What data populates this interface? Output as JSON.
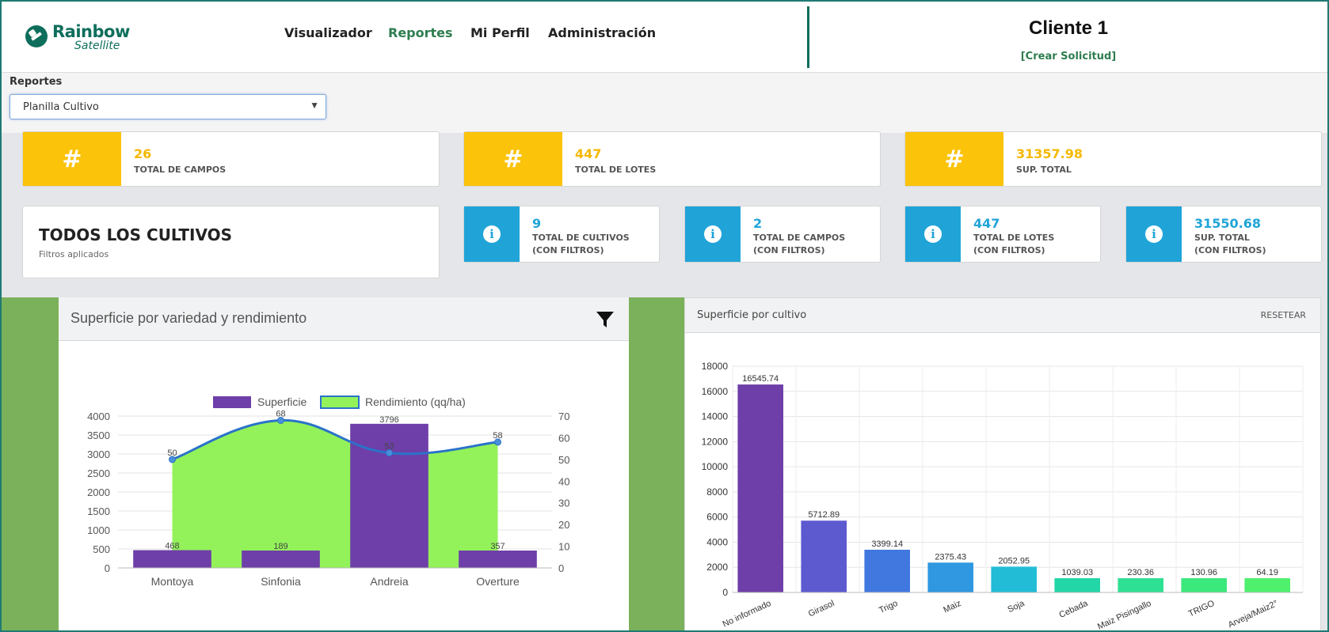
{
  "header": {
    "logo_name": "Rainbow",
    "logo_sub": "Satellite",
    "nav": [
      "Visualizador",
      "Reportes",
      "Mi Perfil",
      "Administración"
    ],
    "active_nav": "Reportes",
    "client": "Cliente 1",
    "create_request": "[Crear Solicitud]"
  },
  "reports": {
    "label": "Reportes",
    "selected": "Planilla Cultivo"
  },
  "summary": [
    {
      "icon": "#",
      "value": "26",
      "label": "TOTAL DE CAMPOS"
    },
    {
      "icon": "#",
      "value": "447",
      "label": "TOTAL DE LOTES"
    },
    {
      "icon": "#",
      "value": "31357.98",
      "label": "SUP. TOTAL"
    }
  ],
  "filters": {
    "title": "TODOS LOS CULTIVOS",
    "subtitle": "Filtros aplicados"
  },
  "filtered": [
    {
      "value": "9",
      "line1": "TOTAL DE CULTIVOS",
      "line2": "(CON FILTROS)"
    },
    {
      "value": "2",
      "line1": "TOTAL DE CAMPOS",
      "line2": "(CON FILTROS)"
    },
    {
      "value": "447",
      "line1": "TOTAL DE LOTES",
      "line2": "(CON FILTROS)"
    },
    {
      "value": "31550.68",
      "line1": "SUP. TOTAL",
      "line2": "(CON FILTROS)"
    }
  ],
  "colors": {
    "brand": "#0e6e5c",
    "yellow": "#fbc30a",
    "blue": "#20a4d8",
    "side_green": "#7bb15a"
  },
  "chart_data": [
    {
      "type": "bar+area",
      "title": "Superficie por variedad y rendimiento",
      "categories": [
        "Montoya",
        "Sinfonia",
        "Andreia",
        "Overture"
      ],
      "series": [
        {
          "name": "Superficie",
          "type": "bar",
          "axis": "left",
          "color": "#6e3fa8",
          "values": [
            468,
            189,
            3796,
            357
          ]
        },
        {
          "name": "Rendimiento (qq/ha)",
          "type": "area",
          "axis": "right",
          "color": "#93f25a",
          "values": [
            50,
            68,
            53,
            58
          ]
        }
      ],
      "y_left": {
        "min": 0,
        "max": 4000,
        "ticks": [
          0,
          500,
          1000,
          1500,
          2000,
          2500,
          3000,
          3500,
          4000
        ]
      },
      "y_right": {
        "min": 0,
        "max": 70,
        "ticks": [
          0,
          10,
          20,
          30,
          40,
          50,
          60,
          70
        ]
      },
      "legend": "top"
    },
    {
      "type": "bar",
      "title": "Superficie por cultivo",
      "action": "RESETEAR",
      "categories": [
        "No informado",
        "Girasol",
        "Trigo",
        "Maiz",
        "Soja",
        "Cebada",
        "Maiz Pisingallo",
        "TRIGO",
        "Arveja/Maiz2°"
      ],
      "values": [
        16545.74,
        5712.89,
        3399.14,
        2375.43,
        2052.95,
        1039.03,
        230.36,
        130.96,
        64.19
      ],
      "colors": [
        "#6e3fa8",
        "#5d5ad0",
        "#4178e0",
        "#2f98e0",
        "#22bcd6",
        "#22d6a8",
        "#2ee093",
        "#3be87c",
        "#4ef06c"
      ],
      "ylim": [
        0,
        18000
      ],
      "ticks": [
        0,
        2000,
        4000,
        6000,
        8000,
        10000,
        12000,
        14000,
        16000,
        18000
      ],
      "grid": true
    }
  ]
}
